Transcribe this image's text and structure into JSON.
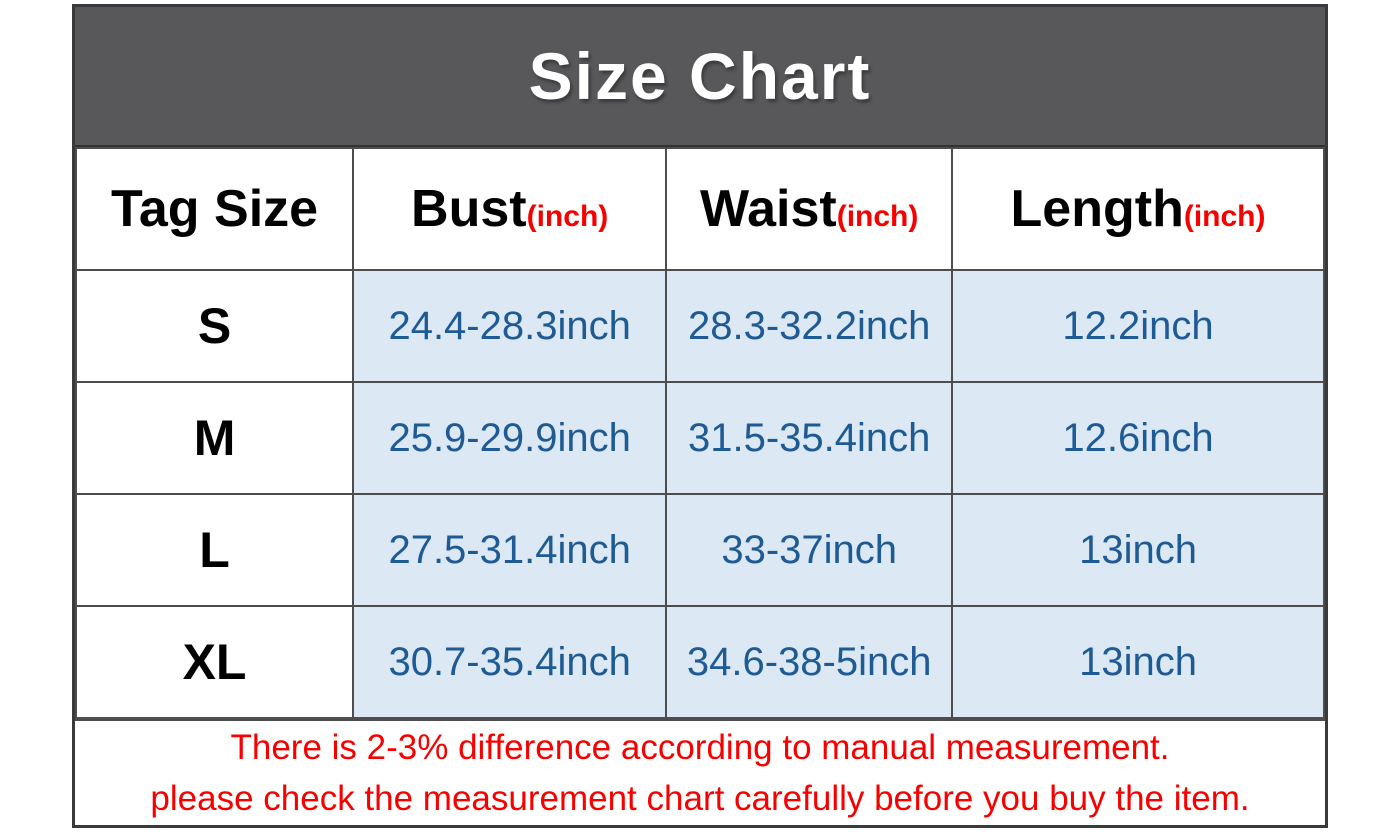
{
  "title": "Size Chart",
  "header": {
    "columns": [
      {
        "label": "Tag Size",
        "unit": ""
      },
      {
        "label": "Bust",
        "unit": "(inch)"
      },
      {
        "label": "Waist",
        "unit": "(inch)"
      },
      {
        "label": "Length",
        "unit": "(inch)"
      }
    ]
  },
  "rows": [
    {
      "size": "S",
      "bust": "24.4-28.3inch",
      "waist": "28.3-32.2inch",
      "length": "12.2inch"
    },
    {
      "size": "M",
      "bust": "25.9-29.9inch",
      "waist": "31.5-35.4inch",
      "length": "12.6inch"
    },
    {
      "size": "L",
      "bust": "27.5-31.4inch",
      "waist": "33-37inch",
      "length": "13inch"
    },
    {
      "size": "XL",
      "bust": "30.7-35.4inch",
      "waist": "34.6-38-5inch",
      "length": "13inch"
    }
  ],
  "footer": {
    "line1": "There is 2-3% difference according to manual measurement.",
    "line2": "please check the measurement chart carefully before you buy the item."
  },
  "colors": {
    "title_bar_bg": "#58585a",
    "title_text": "#ffffff",
    "border": "#4d4d4d",
    "data_cell_bg": "#dce8f3",
    "data_cell_text": "#1e5a94",
    "accent_red": "#f80000",
    "header_text": "#000000"
  },
  "chart_data": {
    "type": "table",
    "title": "Size Chart",
    "columns": [
      "Tag Size",
      "Bust(inch)",
      "Waist(inch)",
      "Length(inch)"
    ],
    "rows": [
      [
        "S",
        "24.4-28.3inch",
        "28.3-32.2inch",
        "12.2inch"
      ],
      [
        "M",
        "25.9-29.9inch",
        "31.5-35.4inch",
        "12.6inch"
      ],
      [
        "L",
        "27.5-31.4inch",
        "33-37inch",
        "13inch"
      ],
      [
        "XL",
        "30.7-35.4inch",
        "34.6-38-5inch",
        "13inch"
      ]
    ],
    "notes": [
      "There is 2-3% difference according to manual measurement.",
      "please check the measurement chart carefully before you buy the item."
    ]
  }
}
